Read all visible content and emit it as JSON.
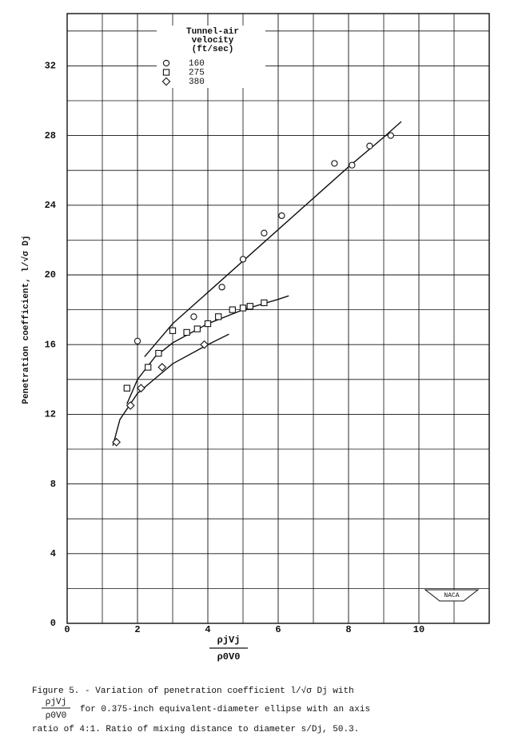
{
  "chart_data": {
    "type": "scatter",
    "y_label": "Penetration coefficient, l/√σ Dj",
    "x_label": {
      "numerator": "ρjVj",
      "denominator": "ρ0V0"
    },
    "legend_title": [
      "Tunnel-air",
      "velocity",
      "(ft/sec)"
    ],
    "xlim": [
      0,
      12
    ],
    "ylim": [
      0,
      35
    ],
    "xticks": [
      0,
      2,
      4,
      6,
      8,
      10
    ],
    "yticks": [
      0,
      4,
      8,
      12,
      16,
      20,
      24,
      28,
      32
    ],
    "minor_xticks": [
      1,
      3,
      5,
      7,
      9,
      11
    ],
    "minor_yticks": [
      2,
      6,
      10,
      14,
      18,
      22,
      26,
      30,
      34
    ],
    "grid": true,
    "color": "#111111",
    "series": [
      {
        "name": "160",
        "marker": "circle",
        "x": [
          2.0,
          3.6,
          4.4,
          5.0,
          5.6,
          6.1,
          7.6,
          8.1,
          8.6,
          9.2
        ],
        "y": [
          16.2,
          17.6,
          19.3,
          20.9,
          22.4,
          23.4,
          26.4,
          26.3,
          27.4,
          28.0
        ],
        "fit_x": [
          2.2,
          3,
          4,
          5,
          6,
          7,
          8,
          9,
          9.5
        ],
        "fit_y": [
          15.3,
          17.2,
          19.0,
          20.8,
          22.6,
          24.4,
          26.2,
          27.9,
          28.8
        ]
      },
      {
        "name": "275",
        "marker": "square",
        "x": [
          1.7,
          2.3,
          2.6,
          3.0,
          3.4,
          3.7,
          4.0,
          4.3,
          4.7,
          5.0,
          5.2,
          5.6
        ],
        "y": [
          13.5,
          14.7,
          15.5,
          16.8,
          16.7,
          16.9,
          17.2,
          17.6,
          18.0,
          18.1,
          18.2,
          18.4
        ],
        "fit_x": [
          1.7,
          2,
          2.5,
          3,
          4,
          5,
          6,
          6.3
        ],
        "fit_y": [
          12.6,
          14.0,
          15.3,
          16.1,
          17.2,
          18.0,
          18.6,
          18.8
        ]
      },
      {
        "name": "380",
        "marker": "diamond",
        "x": [
          1.4,
          1.8,
          2.1,
          2.7,
          3.9
        ],
        "y": [
          10.4,
          12.5,
          13.5,
          14.7,
          16.0
        ],
        "fit_x": [
          1.3,
          1.5,
          2,
          3,
          4,
          4.6
        ],
        "fit_y": [
          10.2,
          11.7,
          13.2,
          14.9,
          16.0,
          16.6
        ]
      }
    ],
    "logo_text": "NACA",
    "caption": {
      "line1": "Figure 5. - Variation of penetration coefficient  l/√σ Dj  with",
      "fraction_num": "ρjVj",
      "fraction_den": "ρ0V0",
      "line2": "for 0.375-inch equivalent-diameter ellipse with an axis",
      "line3": "ratio of 4:1.  Ratio of mixing distance to diameter  s/Dj, 50.3."
    }
  }
}
